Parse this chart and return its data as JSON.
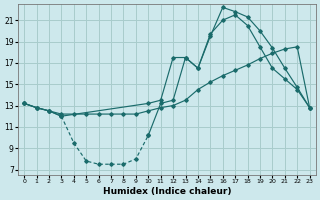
{
  "xlabel": "Humidex (Indice chaleur)",
  "bg_color": "#cde8ec",
  "grid_color": "#a8cccc",
  "line_color": "#1a6b6b",
  "xlim": [
    -0.5,
    23.5
  ],
  "ylim": [
    6.5,
    22.5
  ],
  "xticks": [
    0,
    1,
    2,
    3,
    4,
    5,
    6,
    7,
    8,
    9,
    10,
    11,
    12,
    13,
    14,
    15,
    16,
    17,
    18,
    19,
    20,
    21,
    22,
    23
  ],
  "yticks": [
    7,
    9,
    11,
    13,
    15,
    17,
    19,
    21
  ],
  "curve1_x": [
    0,
    1,
    2,
    3,
    4,
    5,
    6,
    7,
    8,
    9,
    10,
    11,
    12,
    13,
    14,
    15,
    16,
    17,
    18,
    19,
    20,
    21,
    22,
    23
  ],
  "curve1_y": [
    13.2,
    12.8,
    12.5,
    12.2,
    12.2,
    12.2,
    12.2,
    12.2,
    12.2,
    12.2,
    12.5,
    12.8,
    13.0,
    13.5,
    14.5,
    15.2,
    15.8,
    16.3,
    16.8,
    17.4,
    17.9,
    18.3,
    18.5,
    12.8
  ],
  "curve2_x": [
    0,
    1,
    2,
    3,
    10,
    11,
    12,
    13,
    14,
    15,
    16,
    17,
    18,
    19,
    20,
    21,
    22,
    23
  ],
  "curve2_y": [
    13.2,
    12.8,
    12.5,
    12.0,
    13.2,
    13.5,
    17.5,
    17.5,
    16.5,
    19.5,
    22.2,
    21.8,
    21.3,
    20.0,
    18.4,
    16.5,
    14.7,
    12.8
  ],
  "curve3_x": [
    0,
    1,
    2,
    3,
    4,
    5,
    6,
    7,
    8,
    9,
    10,
    11,
    12,
    13,
    14,
    15,
    16,
    17,
    18,
    19,
    20,
    21,
    22,
    23
  ],
  "curve3_y": [
    13.2,
    12.8,
    12.5,
    12.0,
    9.5,
    7.8,
    7.5,
    7.5,
    7.5,
    8.0,
    10.2,
    13.2,
    13.5,
    17.5,
    16.5,
    19.7,
    21.0,
    21.5,
    20.5,
    18.5,
    16.5,
    15.5,
    14.5,
    12.8
  ],
  "curve3_dashed_x": [
    3,
    4,
    5,
    6,
    7,
    8,
    9,
    10
  ],
  "curve3_dashed_y": [
    12.0,
    9.5,
    7.8,
    7.5,
    7.5,
    7.5,
    8.0,
    10.2
  ]
}
